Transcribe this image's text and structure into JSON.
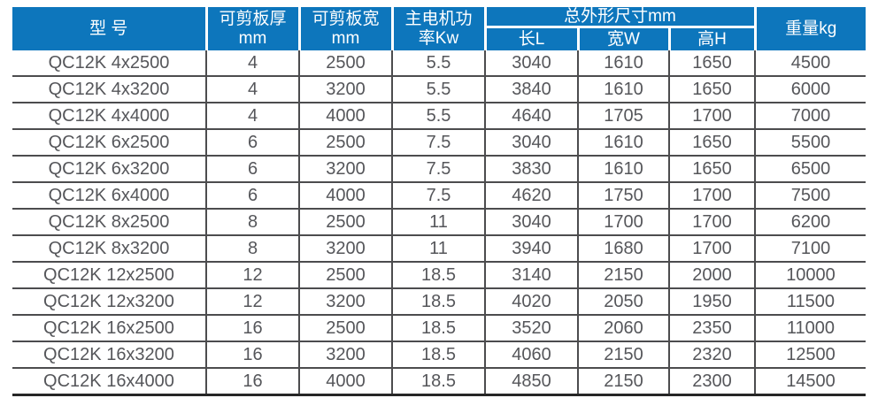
{
  "table": {
    "header": {
      "model": "型 号",
      "thickness_line1": "可剪板厚",
      "thickness_line2": "mm",
      "plate_width_line1": "可剪板宽",
      "plate_width_line2": "mm",
      "power_line1": "主电机功",
      "power_line2": "率Kw",
      "dimensions_group": "总外形尺寸mm",
      "dim_length": "长L",
      "dim_width": "宽W",
      "dim_height": "高H",
      "weight": "重量kg"
    },
    "rows": [
      [
        "QC12K 4x2500",
        "4",
        "2500",
        "5.5",
        "3040",
        "1610",
        "1650",
        "4500"
      ],
      [
        "QC12K 4x3200",
        "4",
        "3200",
        "5.5",
        "3840",
        "1610",
        "1650",
        "6000"
      ],
      [
        "QC12K 4x4000",
        "4",
        "4000",
        "5.5",
        "4640",
        "1705",
        "1700",
        "7000"
      ],
      [
        "QC12K 6x2500",
        "6",
        "2500",
        "7.5",
        "3040",
        "1610",
        "1650",
        "5500"
      ],
      [
        "QC12K 6x3200",
        "6",
        "3200",
        "7.5",
        "3830",
        "1610",
        "1650",
        "6500"
      ],
      [
        "QC12K 6x4000",
        "6",
        "4000",
        "7.5",
        "4620",
        "1750",
        "1700",
        "7500"
      ],
      [
        "QC12K 8x2500",
        "8",
        "2500",
        "11",
        "3040",
        "1700",
        "1700",
        "6200"
      ],
      [
        "QC12K 8x3200",
        "8",
        "3200",
        "11",
        "3940",
        "1680",
        "1700",
        "7100"
      ],
      [
        "QC12K 12x2500",
        "12",
        "2500",
        "18.5",
        "3140",
        "2150",
        "2000",
        "10000"
      ],
      [
        "QC12K 12x3200",
        "12",
        "3200",
        "18.5",
        "4020",
        "2050",
        "1950",
        "11500"
      ],
      [
        "QC12K 16x2500",
        "16",
        "2500",
        "18.5",
        "3520",
        "2060",
        "2350",
        "11000"
      ],
      [
        "QC12K 16x3200",
        "16",
        "3200",
        "18.5",
        "4060",
        "2150",
        "2320",
        "12500"
      ],
      [
        "QC12K 16x4000",
        "16",
        "4000",
        "18.5",
        "4850",
        "2150",
        "2300",
        "14500"
      ]
    ]
  },
  "colors": {
    "header_bg": "#0d76bc",
    "header_text": "#ffffff",
    "body_text": "#55565a",
    "grid_line": "#4c4c4e",
    "bottom_rule": "#262626"
  }
}
